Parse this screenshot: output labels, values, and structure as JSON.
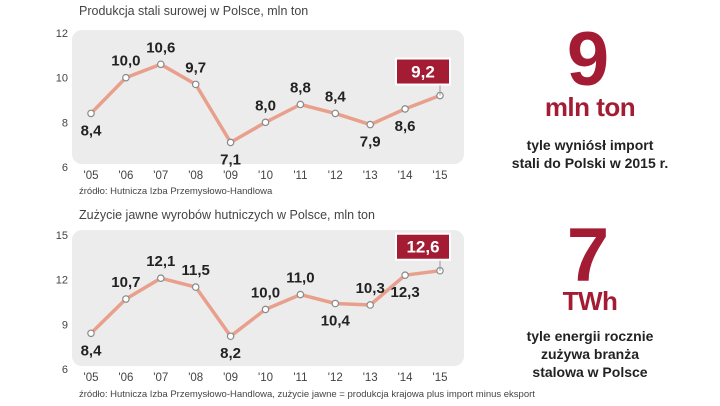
{
  "chart_data": [
    {
      "type": "line",
      "title": "Produkcja stali surowej w Polsce, mln ton",
      "source": "źródło: Hutnicza Izba Przemysłowo-Handlowa",
      "categories": [
        "'05",
        "'06",
        "'07",
        "'08",
        "'09",
        "'10",
        "'11",
        "'12",
        "'13",
        "'14",
        "'15"
      ],
      "values": [
        8.4,
        10.0,
        10.6,
        9.7,
        7.1,
        8.0,
        8.8,
        8.4,
        7.9,
        8.6,
        9.2
      ],
      "labels": [
        "8,4",
        "10,0",
        "10,6",
        "9,7",
        "7,1",
        "8,0",
        "8,8",
        "8,4",
        "7,9",
        "8,6",
        "9,2"
      ],
      "label_pos": [
        "below",
        "above",
        "above",
        "above",
        "below",
        "above",
        "above",
        "above",
        "below",
        "below",
        "highlight"
      ],
      "yticks": [
        "12",
        "10",
        "8",
        "6"
      ],
      "ylim": [
        6,
        12
      ],
      "line_color": "#e8a08c",
      "highlight_color": "#a31c34"
    },
    {
      "type": "line",
      "title": "Zużycie jawne wyrobów hutniczych w Polsce, mln ton",
      "source": "źródło: Hutnicza Izba Przemysłowo-Handlowa, zużycie jawne = produkcja krajowa plus import minus eksport",
      "categories": [
        "'05",
        "'06",
        "'07",
        "'08",
        "'09",
        "'10",
        "'11",
        "'12",
        "'13",
        "'14",
        "'15"
      ],
      "values": [
        8.4,
        10.7,
        12.1,
        11.5,
        8.2,
        10.0,
        11.0,
        10.4,
        10.3,
        12.3,
        12.6
      ],
      "labels": [
        "8,4",
        "10,7",
        "12,1",
        "11,5",
        "8,2",
        "10,0",
        "11,0",
        "10,4",
        "10,3",
        "12,3",
        "12,6"
      ],
      "label_pos": [
        "below",
        "above",
        "above",
        "above",
        "below",
        "above",
        "above",
        "below",
        "above",
        "below",
        "highlight"
      ],
      "yticks": [
        "15",
        "12",
        "9",
        "6"
      ],
      "ylim": [
        6,
        15
      ],
      "line_color": "#e8a08c",
      "highlight_color": "#a31c34"
    }
  ],
  "facts": [
    {
      "number": "9",
      "unit": "mln ton",
      "caption_line1": "tyle wyniósł import",
      "caption_line2": "stali do Polski w 2015 r."
    },
    {
      "number": "7",
      "unit": "TWh",
      "caption_line1": "tyle energii rocznie",
      "caption_line2": "zużywa branża",
      "caption_line3": "stalowa w Polsce"
    }
  ],
  "colors": {
    "accent": "#a31c34",
    "panel": "#ececec"
  }
}
